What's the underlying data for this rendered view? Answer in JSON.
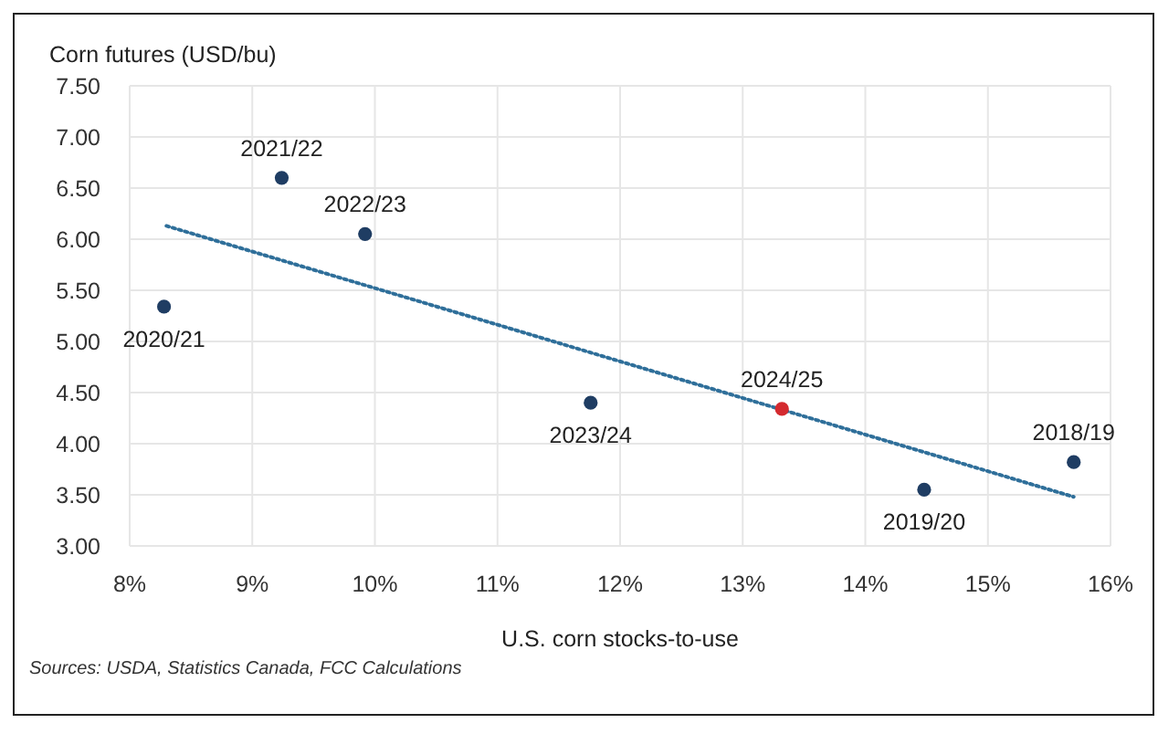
{
  "chart_data": {
    "type": "scatter",
    "ylabel": "Corn futures (USD/bu)",
    "xlabel": "U.S. corn stocks-to-use",
    "xlim": [
      8,
      16
    ],
    "xticks": [
      {
        "value": 8,
        "label": "8%"
      },
      {
        "value": 9,
        "label": "9%"
      },
      {
        "value": 10,
        "label": "10%"
      },
      {
        "value": 11,
        "label": "11%"
      },
      {
        "value": 12,
        "label": "12%"
      },
      {
        "value": 13,
        "label": "13%"
      },
      {
        "value": 14,
        "label": "14%"
      },
      {
        "value": 15,
        "label": "15%"
      },
      {
        "value": 16,
        "label": "16%"
      }
    ],
    "ylim": [
      3,
      7.5
    ],
    "yticks": [
      {
        "value": 3,
        "label": "3.00"
      },
      {
        "value": 3.5,
        "label": "3.50"
      },
      {
        "value": 4,
        "label": "4.00"
      },
      {
        "value": 4.5,
        "label": "4.50"
      },
      {
        "value": 5,
        "label": "5.00"
      },
      {
        "value": 5.5,
        "label": "5.50"
      },
      {
        "value": 6,
        "label": "6.00"
      },
      {
        "value": 6.5,
        "label": "6.50"
      },
      {
        "value": 7,
        "label": "7.00"
      },
      {
        "value": 7.5,
        "label": "7.50"
      }
    ],
    "grid": true,
    "series": [
      {
        "marker": "circle",
        "x": [
          8.28,
          9.24,
          9.92,
          11.76,
          13.32,
          14.48,
          15.7
        ],
        "values": [
          5.34,
          6.6,
          6.05,
          4.4,
          4.34,
          3.55,
          3.82
        ],
        "colors": [
          "#1f3d63",
          "#1f3d63",
          "#1f3d63",
          "#1f3d63",
          "#d42a2f",
          "#1f3d63",
          "#1f3d63"
        ]
      },
      {
        "type": "line",
        "x": [
          8.3,
          15.7
        ],
        "values": [
          6.13,
          3.48
        ],
        "color": "#2f6f9a",
        "line_style": "dotted",
        "marker": "none"
      }
    ],
    "annotations": [
      {
        "text": "2020/21",
        "x": 8.28,
        "y": 5.34
      },
      {
        "text": "2021/22",
        "x": 9.24,
        "y": 6.6
      },
      {
        "text": "2022/23",
        "x": 9.92,
        "y": 6.05
      },
      {
        "text": "2023/24",
        "x": 11.76,
        "y": 4.4
      },
      {
        "text": "2024/25",
        "x": 13.32,
        "y": 4.34
      },
      {
        "text": "2019/20",
        "x": 14.48,
        "y": 3.55
      },
      {
        "text": "2018/19",
        "x": 15.7,
        "y": 3.82
      },
      "Sources: USDA, Statistics Canada, FCC Calculations"
    ]
  }
}
